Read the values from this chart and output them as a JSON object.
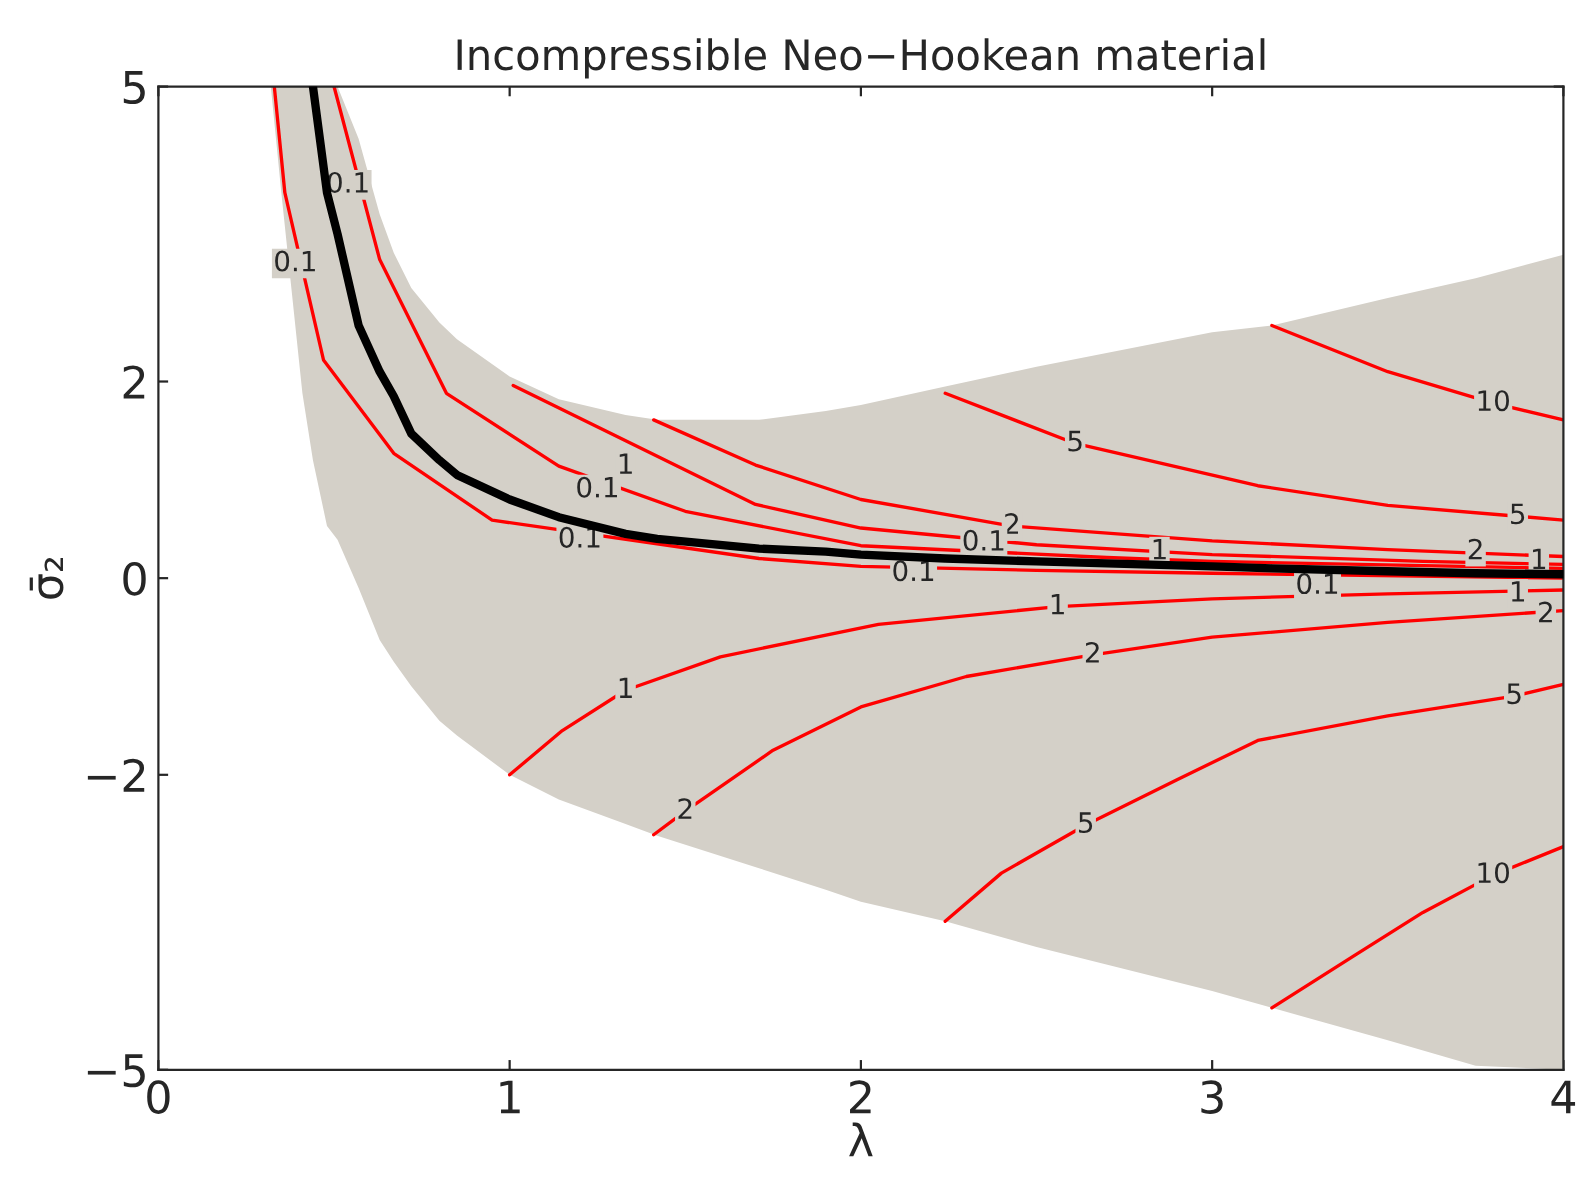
{
  "chart_data": {
    "type": "line",
    "title": "Incompressible Neo−Hookean material",
    "xlabel": "λ",
    "ylabel": "σ̄₂",
    "xlim": [
      0,
      4
    ],
    "xticks": [
      0,
      1,
      2,
      3,
      4
    ],
    "ylim": [
      -5,
      5
    ],
    "yticks": [
      {
        "value": -5,
        "label": "−5"
      },
      {
        "value": -2,
        "label": "−2"
      },
      0,
      2,
      5
    ],
    "grid": false,
    "legend": false,
    "series": [
      {
        "color": "#000000",
        "x": [
          0.32,
          0.35,
          0.41,
          0.44,
          0.48,
          0.51,
          0.57,
          0.63,
          0.67,
          0.72,
          0.8,
          0.85,
          1.0,
          1.14,
          1.33,
          1.42,
          1.71,
          1.9,
          2.0,
          2.24,
          2.5,
          3.0,
          3.17,
          3.5,
          3.75,
          4.0
        ],
        "values": [
          null,
          null,
          null,
          5,
          3.92,
          3.5,
          2.57,
          2.1,
          1.85,
          1.47,
          1.2,
          1.05,
          0.8,
          0.62,
          0.45,
          0.4,
          0.3,
          0.27,
          0.24,
          0.2,
          0.17,
          0.12,
          0.1,
          0.07,
          0.05,
          0.04
        ],
        "lower": [
          5,
          3.92,
          1.88,
          1.2,
          0.53,
          0.39,
          -0.1,
          -0.63,
          -0.85,
          -1.1,
          -1.45,
          -1.6,
          -2.0,
          -2.25,
          -2.5,
          -2.62,
          -2.95,
          -3.17,
          -3.29,
          -3.49,
          -3.75,
          -4.2,
          -4.37,
          -4.7,
          -4.96,
          -5
        ],
        "upper": [
          5,
          5,
          5,
          5,
          5,
          5,
          4.47,
          3.7,
          3.31,
          2.95,
          2.6,
          2.43,
          2.05,
          1.82,
          1.66,
          1.61,
          1.61,
          1.7,
          1.76,
          1.95,
          2.15,
          2.5,
          2.57,
          2.85,
          3.05,
          3.29
        ]
      },
      {
        "color": "#ff0000",
        "x": [
          0.5,
          0.63,
          0.82,
          1.14,
          1.5,
          2.0,
          2.7,
          3.0,
          4.0
        ],
        "values": [
          5,
          3.24,
          1.88,
          1.14,
          0.68,
          0.33,
          0.21,
          0.17,
          0.1
        ]
      },
      {
        "color": "#ff0000",
        "x": [
          0.33,
          0.36,
          0.47,
          0.67,
          0.95,
          1.71,
          2.0,
          2.5,
          3.0,
          4.0
        ],
        "values": [
          5,
          3.92,
          2.22,
          1.27,
          0.59,
          0.2,
          0.12,
          0.08,
          0.05,
          0.0
        ]
      },
      {
        "color": "#ff0000",
        "x": [
          1.01,
          1.7,
          2.0,
          2.5,
          3.0,
          3.6,
          4.0
        ],
        "values": [
          1.96,
          0.75,
          0.51,
          0.34,
          0.24,
          0.17,
          0.14
        ]
      },
      {
        "color": "#ff0000",
        "x": [
          1.41,
          1.7,
          2.0,
          2.43,
          3.0,
          3.5,
          4.0
        ],
        "values": [
          1.61,
          1.15,
          0.8,
          0.53,
          0.38,
          0.29,
          0.22
        ]
      },
      {
        "color": "#ff0000",
        "x": [
          2.24,
          2.61,
          3.13,
          3.5,
          3.87,
          4.0
        ],
        "values": [
          1.88,
          1.37,
          0.94,
          0.74,
          0.63,
          0.59
        ]
      },
      {
        "color": "#ff0000",
        "x": [
          3.17,
          3.5,
          3.8,
          4.0
        ],
        "values": [
          2.57,
          2.1,
          1.78,
          1.61
        ]
      },
      {
        "color": "#ff0000",
        "x": [
          1.0,
          1.15,
          1.33,
          1.6,
          2.05,
          2.56,
          3.0,
          3.5,
          4.0
        ],
        "values": [
          -2.0,
          -1.55,
          -1.14,
          -0.8,
          -0.47,
          -0.29,
          -0.21,
          -0.16,
          -0.12
        ]
      },
      {
        "color": "#ff0000",
        "x": [
          1.41,
          1.5,
          1.75,
          2.0,
          2.3,
          2.66,
          3.0,
          3.5,
          4.0
        ],
        "values": [
          -2.61,
          -2.37,
          -1.75,
          -1.31,
          -1.0,
          -0.78,
          -0.6,
          -0.45,
          -0.33
        ]
      },
      {
        "color": "#ff0000",
        "x": [
          2.24,
          2.4,
          2.64,
          2.9,
          3.13,
          3.5,
          3.86,
          4.0
        ],
        "values": [
          -3.49,
          -3.0,
          -2.51,
          -2.05,
          -1.65,
          -1.4,
          -1.2,
          -1.08
        ]
      },
      {
        "color": "#ff0000",
        "x": [
          3.17,
          3.4,
          3.6,
          3.8,
          4.0
        ],
        "values": [
          -4.37,
          -3.85,
          -3.4,
          -3.02,
          -2.73
        ]
      }
    ],
    "annotations": [
      {
        "text": "0.1",
        "x": 0.54,
        "y": 4.0
      },
      {
        "text": "0.1",
        "x": 0.39,
        "y": 3.2
      },
      {
        "text": "1",
        "x": 1.33,
        "y": 1.14
      },
      {
        "text": "0.1",
        "x": 1.25,
        "y": 0.9
      },
      {
        "text": "0.1",
        "x": 1.2,
        "y": 0.39
      },
      {
        "text": "5",
        "x": 2.61,
        "y": 1.37
      },
      {
        "text": "10",
        "x": 3.8,
        "y": 1.78
      },
      {
        "text": "5",
        "x": 3.87,
        "y": 0.63
      },
      {
        "text": "2",
        "x": 2.43,
        "y": 0.53
      },
      {
        "text": "0.1",
        "x": 2.35,
        "y": 0.36
      },
      {
        "text": "1",
        "x": 2.85,
        "y": 0.27
      },
      {
        "text": "0.1",
        "x": 2.15,
        "y": 0.05
      },
      {
        "text": "2",
        "x": 3.75,
        "y": 0.27
      },
      {
        "text": "1",
        "x": 3.93,
        "y": 0.17
      },
      {
        "text": "0.1",
        "x": 3.3,
        "y": -0.08
      },
      {
        "text": "1",
        "x": 1.33,
        "y": -1.14
      },
      {
        "text": "2",
        "x": 1.5,
        "y": -2.37
      },
      {
        "text": "1",
        "x": 2.56,
        "y": -0.29
      },
      {
        "text": "2",
        "x": 2.66,
        "y": -0.78
      },
      {
        "text": "1",
        "x": 3.87,
        "y": -0.16
      },
      {
        "text": "2",
        "x": 3.95,
        "y": -0.37
      },
      {
        "text": "5",
        "x": 2.64,
        "y": -2.51
      },
      {
        "text": "5",
        "x": 3.86,
        "y": -1.2
      },
      {
        "text": "10",
        "x": 3.8,
        "y": -3.02
      }
    ]
  }
}
